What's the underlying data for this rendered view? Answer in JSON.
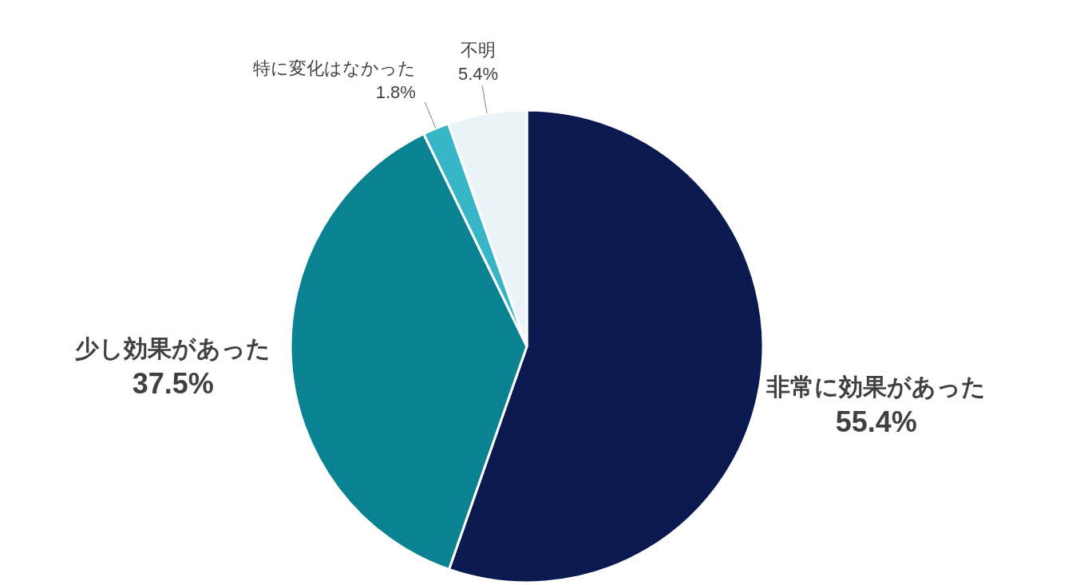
{
  "chart_data": {
    "type": "pie",
    "categories": [
      "非常に効果があった",
      "少し効果があった",
      "特に変化はなかった",
      "不明"
    ],
    "values": [
      55.4,
      37.5,
      1.8,
      5.4
    ],
    "colors": [
      "#0a1a50",
      "#0a8292",
      "#36b6c6",
      "#eaf3f7"
    ],
    "value_labels": [
      "55.4%",
      "37.5%",
      "1.8%",
      "5.4%"
    ]
  }
}
